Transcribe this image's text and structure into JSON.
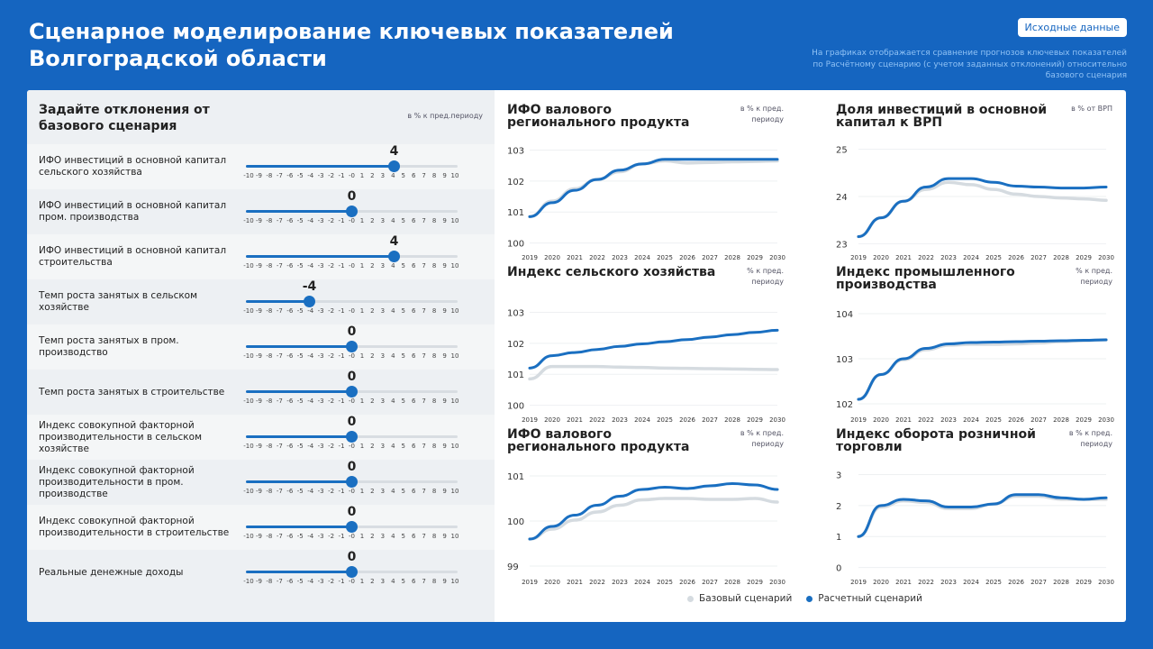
{
  "page": {
    "title": "Сценарное моделирование ключевых показателей Волгоградской области",
    "source_button": "Исходные данные",
    "note": "На графиках отображается сравнение прогнозов ключевых показателей по Расчётному сценарию (с учетом заданных отклонений) относительно базового сценария"
  },
  "colors": {
    "accent": "#1565c0",
    "series_calc": "#1a6fc1",
    "series_base": "#d5dbe0"
  },
  "controls": {
    "heading": "Задайте отклонения от базового сценария",
    "unit": "в % к пред.периоду",
    "ticks": [
      "-10",
      "-9",
      "-8",
      "-7",
      "-6",
      "-5",
      "-4",
      "-3",
      "-2",
      "-1",
      "-0",
      "1",
      "2",
      "3",
      "4",
      "5",
      "6",
      "7",
      "8",
      "9",
      "10"
    ],
    "sliders": [
      {
        "label": "ИФО инвестиций в основной капитал сельского хозяйства",
        "value": 4
      },
      {
        "label": "ИФО инвестиций в основной капитал пром. производства",
        "value": 0
      },
      {
        "label": "ИФО инвестиций в основной капитал строительства",
        "value": 4
      },
      {
        "label": "Темп роста занятых в сельском хозяйстве",
        "value": -4
      },
      {
        "label": "Темп роста занятых в пром. производство",
        "value": 0
      },
      {
        "label": "Темп роста занятых в строительстве",
        "value": 0
      },
      {
        "label": "Индекс совокупной факторной производительности в сельском хозяйстве",
        "value": 0
      },
      {
        "label": "Индекс совокупной факторной производительности в пром. производстве",
        "value": 0
      },
      {
        "label": "Индекс совокупной факторной производительности в строительстве",
        "value": 0
      },
      {
        "label": "Реальные денежные доходы",
        "value": 0
      }
    ]
  },
  "legend": {
    "base": "Базовый сценарий",
    "calc": "Расчетный сценарий"
  },
  "chart_data": [
    {
      "type": "line",
      "title": "ИФО валового регионального продукта",
      "unit": "в % к пред. периоду",
      "x": [
        "2019",
        "2020",
        "2021",
        "2022",
        "2023",
        "2024",
        "2025",
        "2026",
        "2027",
        "2028",
        "2029",
        "2030"
      ],
      "yticks": [
        100,
        101,
        102,
        103
      ],
      "ylim": [
        99.9,
        103.1
      ],
      "series": [
        {
          "name": "Базовый сценарий",
          "values": [
            100.85,
            101.35,
            101.75,
            102.05,
            102.3,
            102.55,
            102.65,
            102.58,
            102.6,
            102.62,
            102.63,
            102.65
          ]
        },
        {
          "name": "Расчетный сценарий",
          "values": [
            100.85,
            101.3,
            101.7,
            102.05,
            102.35,
            102.55,
            102.7,
            102.7,
            102.7,
            102.7,
            102.7,
            102.7
          ]
        }
      ]
    },
    {
      "type": "line",
      "title": "Доля инвестиций в основной капитал к ВРП",
      "unit": "в % от ВРП",
      "x": [
        "2019",
        "2020",
        "2021",
        "2022",
        "2023",
        "2024",
        "2025",
        "2026",
        "2027",
        "2028",
        "2029",
        "2030"
      ],
      "yticks": [
        23,
        24,
        25
      ],
      "ylim": [
        22.95,
        25.05
      ],
      "series": [
        {
          "name": "Базовый сценарий",
          "values": [
            23.15,
            23.55,
            23.9,
            24.15,
            24.3,
            24.25,
            24.15,
            24.05,
            24.0,
            23.97,
            23.95,
            23.92
          ]
        },
        {
          "name": "Расчетный сценарий",
          "values": [
            23.15,
            23.55,
            23.9,
            24.2,
            24.38,
            24.38,
            24.3,
            24.22,
            24.2,
            24.18,
            24.18,
            24.2
          ]
        }
      ]
    },
    {
      "type": "line",
      "title": "Индекс сельского хозяйства",
      "unit": "% к пред. периоду",
      "x": [
        "2019",
        "2020",
        "2021",
        "2022",
        "2023",
        "2024",
        "2025",
        "2026",
        "2027",
        "2028",
        "2029",
        "2030"
      ],
      "yticks": [
        100,
        101,
        102,
        103
      ],
      "ylim": [
        99.9,
        103.1
      ],
      "series": [
        {
          "name": "Базовый сценарий",
          "values": [
            100.85,
            101.25,
            101.25,
            101.25,
            101.23,
            101.22,
            101.2,
            101.19,
            101.18,
            101.17,
            101.16,
            101.15
          ]
        },
        {
          "name": "Расчетный сценарий",
          "values": [
            101.2,
            101.6,
            101.7,
            101.8,
            101.9,
            101.98,
            102.05,
            102.12,
            102.2,
            102.28,
            102.35,
            102.42
          ]
        }
      ]
    },
    {
      "type": "line",
      "title": "Индекс промышленного производства",
      "unit": "% к пред. периоду",
      "x": [
        "2019",
        "2020",
        "2021",
        "2022",
        "2023",
        "2024",
        "2025",
        "2026",
        "2027",
        "2028",
        "2029",
        "2030"
      ],
      "yticks": [
        102,
        103,
        104
      ],
      "ylim": [
        101.9,
        104.1
      ],
      "series": [
        {
          "name": "Базовый сценарий",
          "values": [
            102.1,
            102.65,
            102.98,
            103.2,
            103.3,
            103.32,
            103.32,
            103.33,
            103.35,
            103.38,
            103.4,
            103.42
          ]
        },
        {
          "name": "Расчетный сценарий",
          "values": [
            102.1,
            102.65,
            103.0,
            103.23,
            103.33,
            103.36,
            103.37,
            103.38,
            103.39,
            103.4,
            103.41,
            103.42
          ]
        }
      ]
    },
    {
      "type": "line",
      "title": "ИФО валового регионального продукта",
      "unit": "в % к пред. периоду",
      "x": [
        "2019",
        "2020",
        "2021",
        "2022",
        "2023",
        "2024",
        "2025",
        "2026",
        "2027",
        "2028",
        "2029",
        "2030"
      ],
      "yticks": [
        99,
        100,
        101
      ],
      "ylim": [
        98.9,
        101.1
      ],
      "series": [
        {
          "name": "Базовый сценарий",
          "values": [
            99.6,
            99.82,
            100.02,
            100.2,
            100.35,
            100.47,
            100.5,
            100.5,
            100.48,
            100.48,
            100.5,
            100.42
          ]
        },
        {
          "name": "Расчетный сценарий",
          "values": [
            99.6,
            99.88,
            100.13,
            100.35,
            100.55,
            100.7,
            100.75,
            100.72,
            100.78,
            100.83,
            100.8,
            100.7
          ]
        }
      ]
    },
    {
      "type": "line",
      "title": "Индекс оборота розничной торговли",
      "unit": "в % к пред. периоду",
      "x": [
        "2019",
        "2020",
        "2021",
        "2022",
        "2023",
        "2024",
        "2025",
        "2026",
        "2027",
        "2028",
        "2029",
        "2030"
      ],
      "yticks": [
        0,
        1,
        2,
        3
      ],
      "ylim": [
        -0.1,
        3.1
      ],
      "series": [
        {
          "name": "Базовый сценарий",
          "values": [
            1.0,
            1.95,
            2.15,
            2.1,
            1.9,
            1.9,
            2.05,
            2.3,
            2.3,
            2.2,
            2.2,
            2.2
          ]
        },
        {
          "name": "Расчетный сценарий",
          "values": [
            1.0,
            2.0,
            2.2,
            2.15,
            1.95,
            1.95,
            2.05,
            2.35,
            2.35,
            2.25,
            2.2,
            2.25
          ]
        }
      ]
    }
  ]
}
